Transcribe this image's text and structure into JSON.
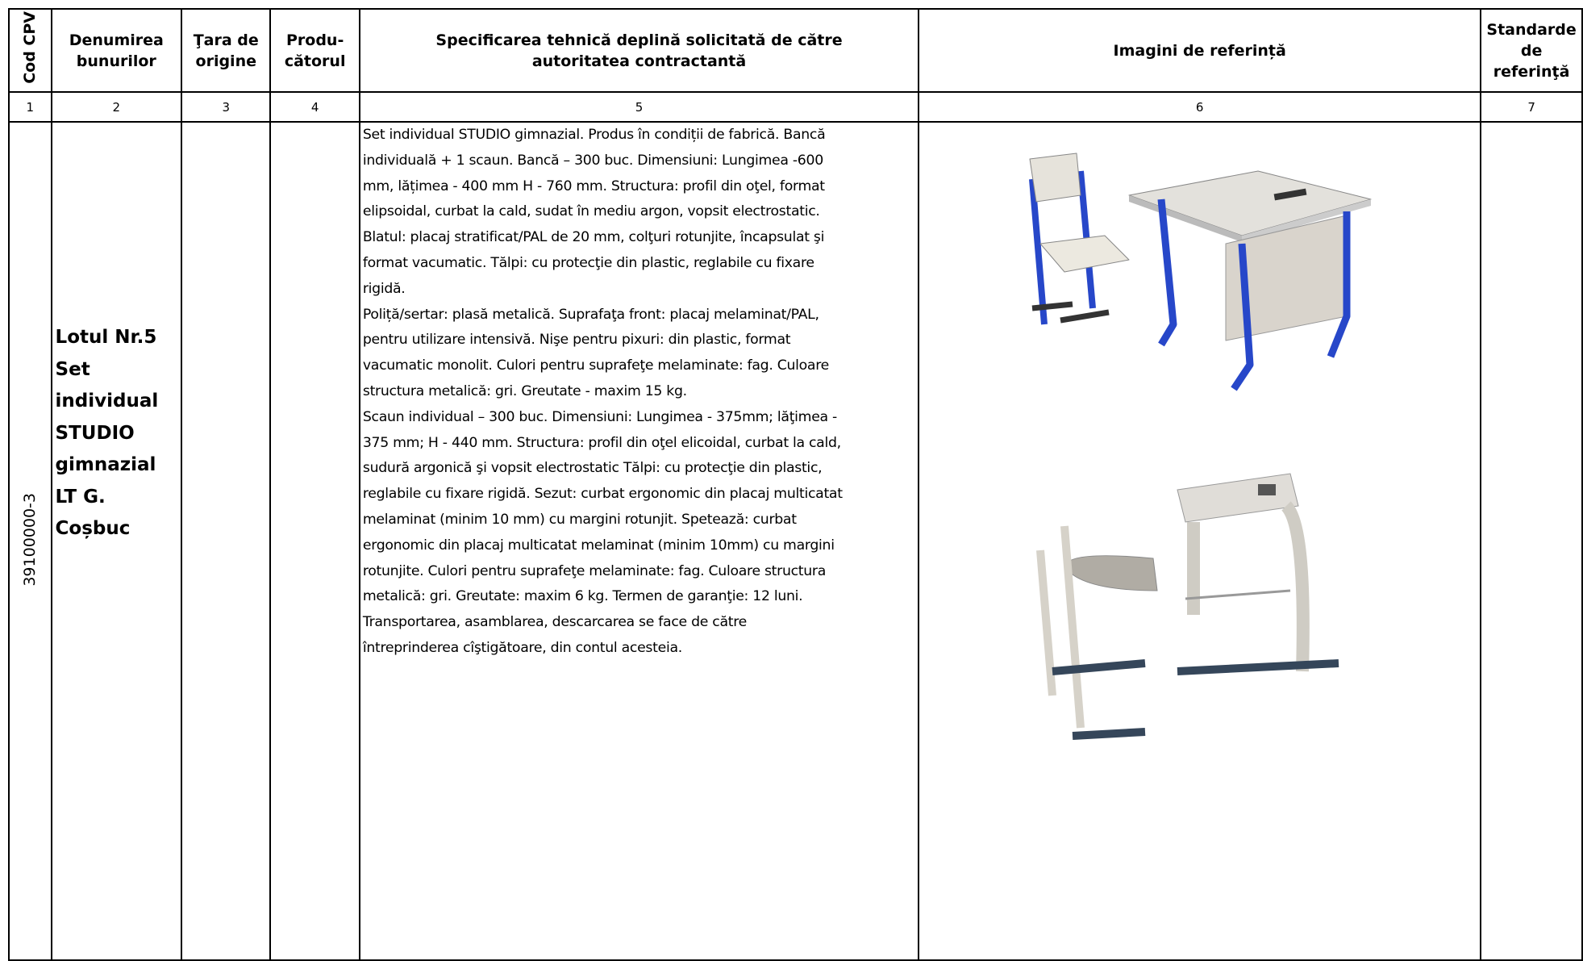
{
  "table": {
    "headers": [
      "Cod CPV",
      "Denumirea\nbunurilor",
      "Ţara de\norigine",
      "Produ-\ncătorul",
      "Specificarea tehnică deplină solicitată de către\nautoritatea contractantă",
      "Imagini de referință",
      "Standarde\nde referinţă"
    ],
    "numbers": [
      "1",
      "2",
      "3",
      "4",
      "5",
      "6",
      "7"
    ],
    "rows": [
      {
        "cpv": "39100000-3",
        "name": [
          "Lotul Nr.5",
          "Set",
          "individual",
          "STUDIO",
          "gimnazial",
          "LT G.",
          "Coșbuc"
        ],
        "spec": [
          "Set individual STUDIO gimnazial. Produs în condiții de fabrică. Bancă",
          "individuală + 1 scaun. Bancă – 300 buc. Dimensiuni: Lungimea -600",
          "mm, lățimea - 400 mm H - 760 mm. Structura: profil din oţel, format",
          "elipsoidal, curbat la cald, sudat în mediu argon, vopsit electrostatic.",
          "Blatul: placaj stratificat/PAL de 20 mm, colţuri rotunjite, încapsulat şi",
          "format vacumatic. Tălpi: cu protecţie din plastic, reglabile cu fixare",
          "rigidă.",
          "Poliță/sertar: plasă metalică. Suprafaţa front: placaj melaminat/PAL,",
          "pentru utilizare intensivă. Nişe pentru pixuri: din plastic, format",
          "vacumatic monolit. Culori pentru suprafeţe melaminate: fag. Culoare",
          "structura metalică: gri. Greutate - maxim 15 kg.",
          "Scaun individual – 300 buc. Dimensiuni: Lungimea - 375mm; lăţimea -",
          "375 mm; H - 440 mm. Structura: profil din oţel elicoidal, curbat la cald,",
          "sudură argonică şi vopsit electrostatic Tălpi: cu protecţie din plastic,",
          "reglabile cu fixare rigidă. Sezut: curbat ergonomic din placaj multicatat",
          "melaminat (minim 10 mm) cu margini rotunjit. Spetează: curbat",
          "ergonomic din placaj multicatat melaminat (minim 10mm) cu margini",
          "rotunjite. Culori pentru suprafeţe melaminate: fag. Culoare structura",
          "metalică: gri. Greutate: maxim 6 kg. Termen de garanţie: 12 luni.",
          "Transportarea, asamblarea, descarcarea se face de către",
          "întreprinderea cîştigătoare, din  contul acesteia."
        ]
      }
    ]
  }
}
